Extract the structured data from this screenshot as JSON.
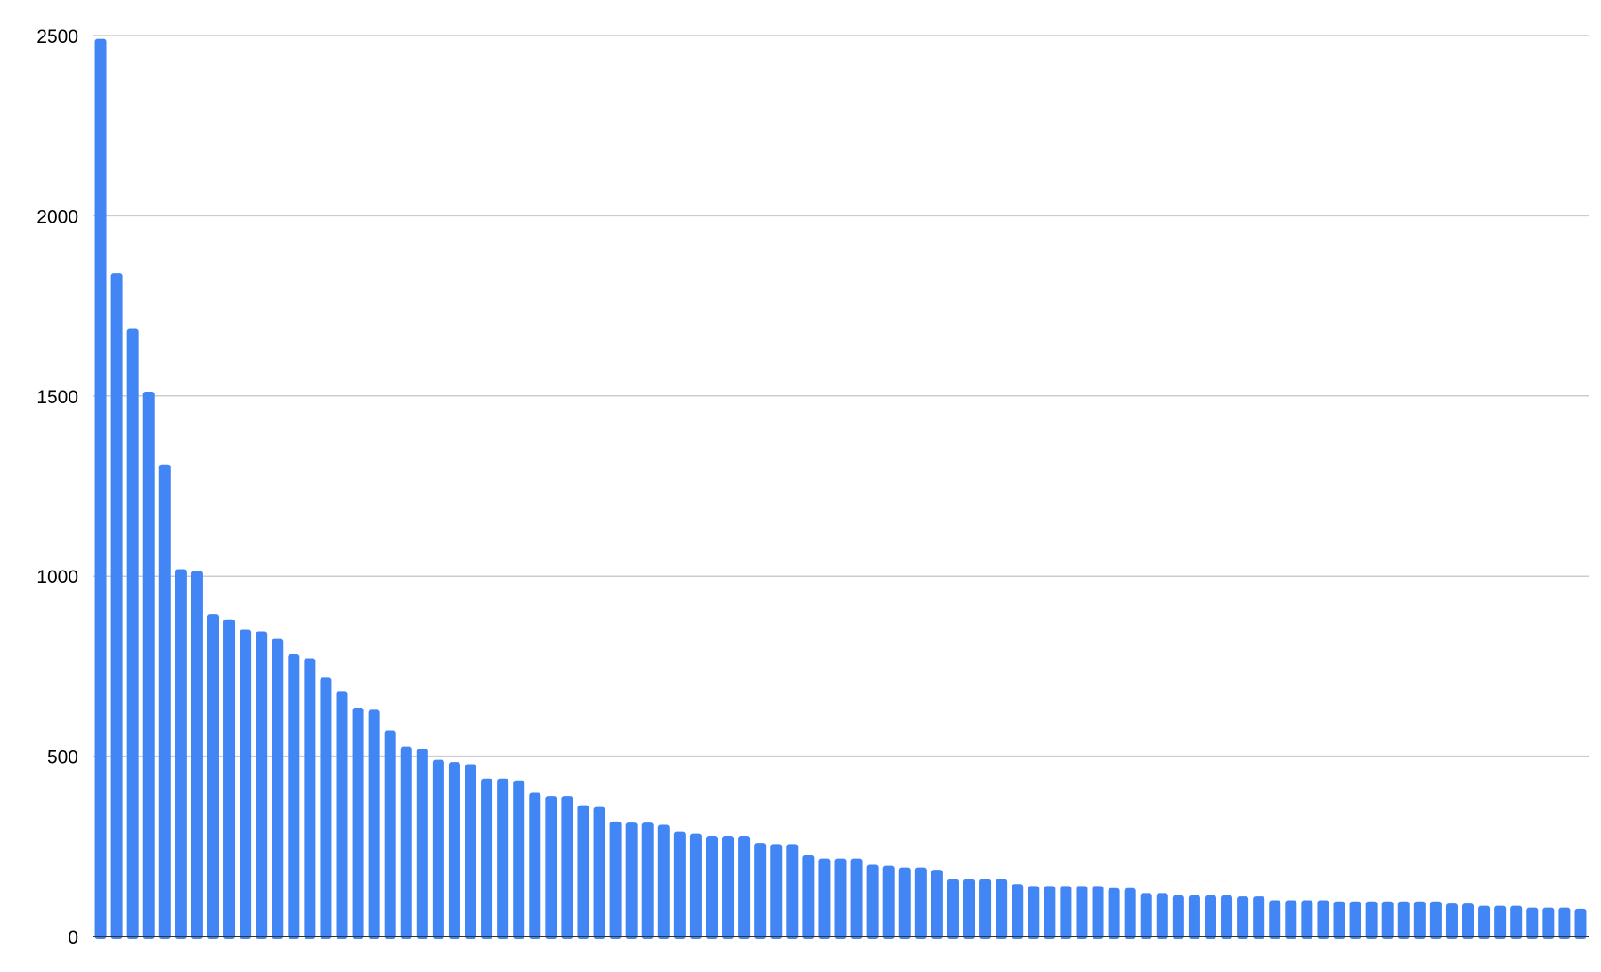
{
  "chart_data": {
    "type": "bar",
    "title": "",
    "xlabel": "",
    "ylabel": "",
    "ylim": [
      0,
      2500
    ],
    "yticks": [
      "0",
      "500",
      "1000",
      "1500",
      "2000",
      "2500"
    ],
    "grid": true,
    "legend": "none",
    "bar_color": "#4285f4",
    "values": [
      2491,
      1840,
      1686,
      1512,
      1310,
      1019,
      1014,
      894,
      880,
      851,
      846,
      826,
      783,
      772,
      718,
      681,
      635,
      629,
      572,
      527,
      521,
      490,
      484,
      478,
      438,
      438,
      433,
      399,
      390,
      390,
      364,
      359,
      319,
      316,
      316,
      310,
      290,
      285,
      279,
      279,
      279,
      259,
      256,
      256,
      225,
      216,
      216,
      216,
      199,
      196,
      191,
      191,
      185,
      159,
      159,
      159,
      159,
      145,
      140,
      140,
      140,
      140,
      140,
      134,
      134,
      120,
      120,
      114,
      114,
      114,
      114,
      111,
      111,
      100,
      100,
      100,
      100,
      97,
      97,
      97,
      97,
      97,
      97,
      97,
      91,
      91,
      85,
      85,
      85,
      80,
      80,
      80,
      77
    ]
  }
}
